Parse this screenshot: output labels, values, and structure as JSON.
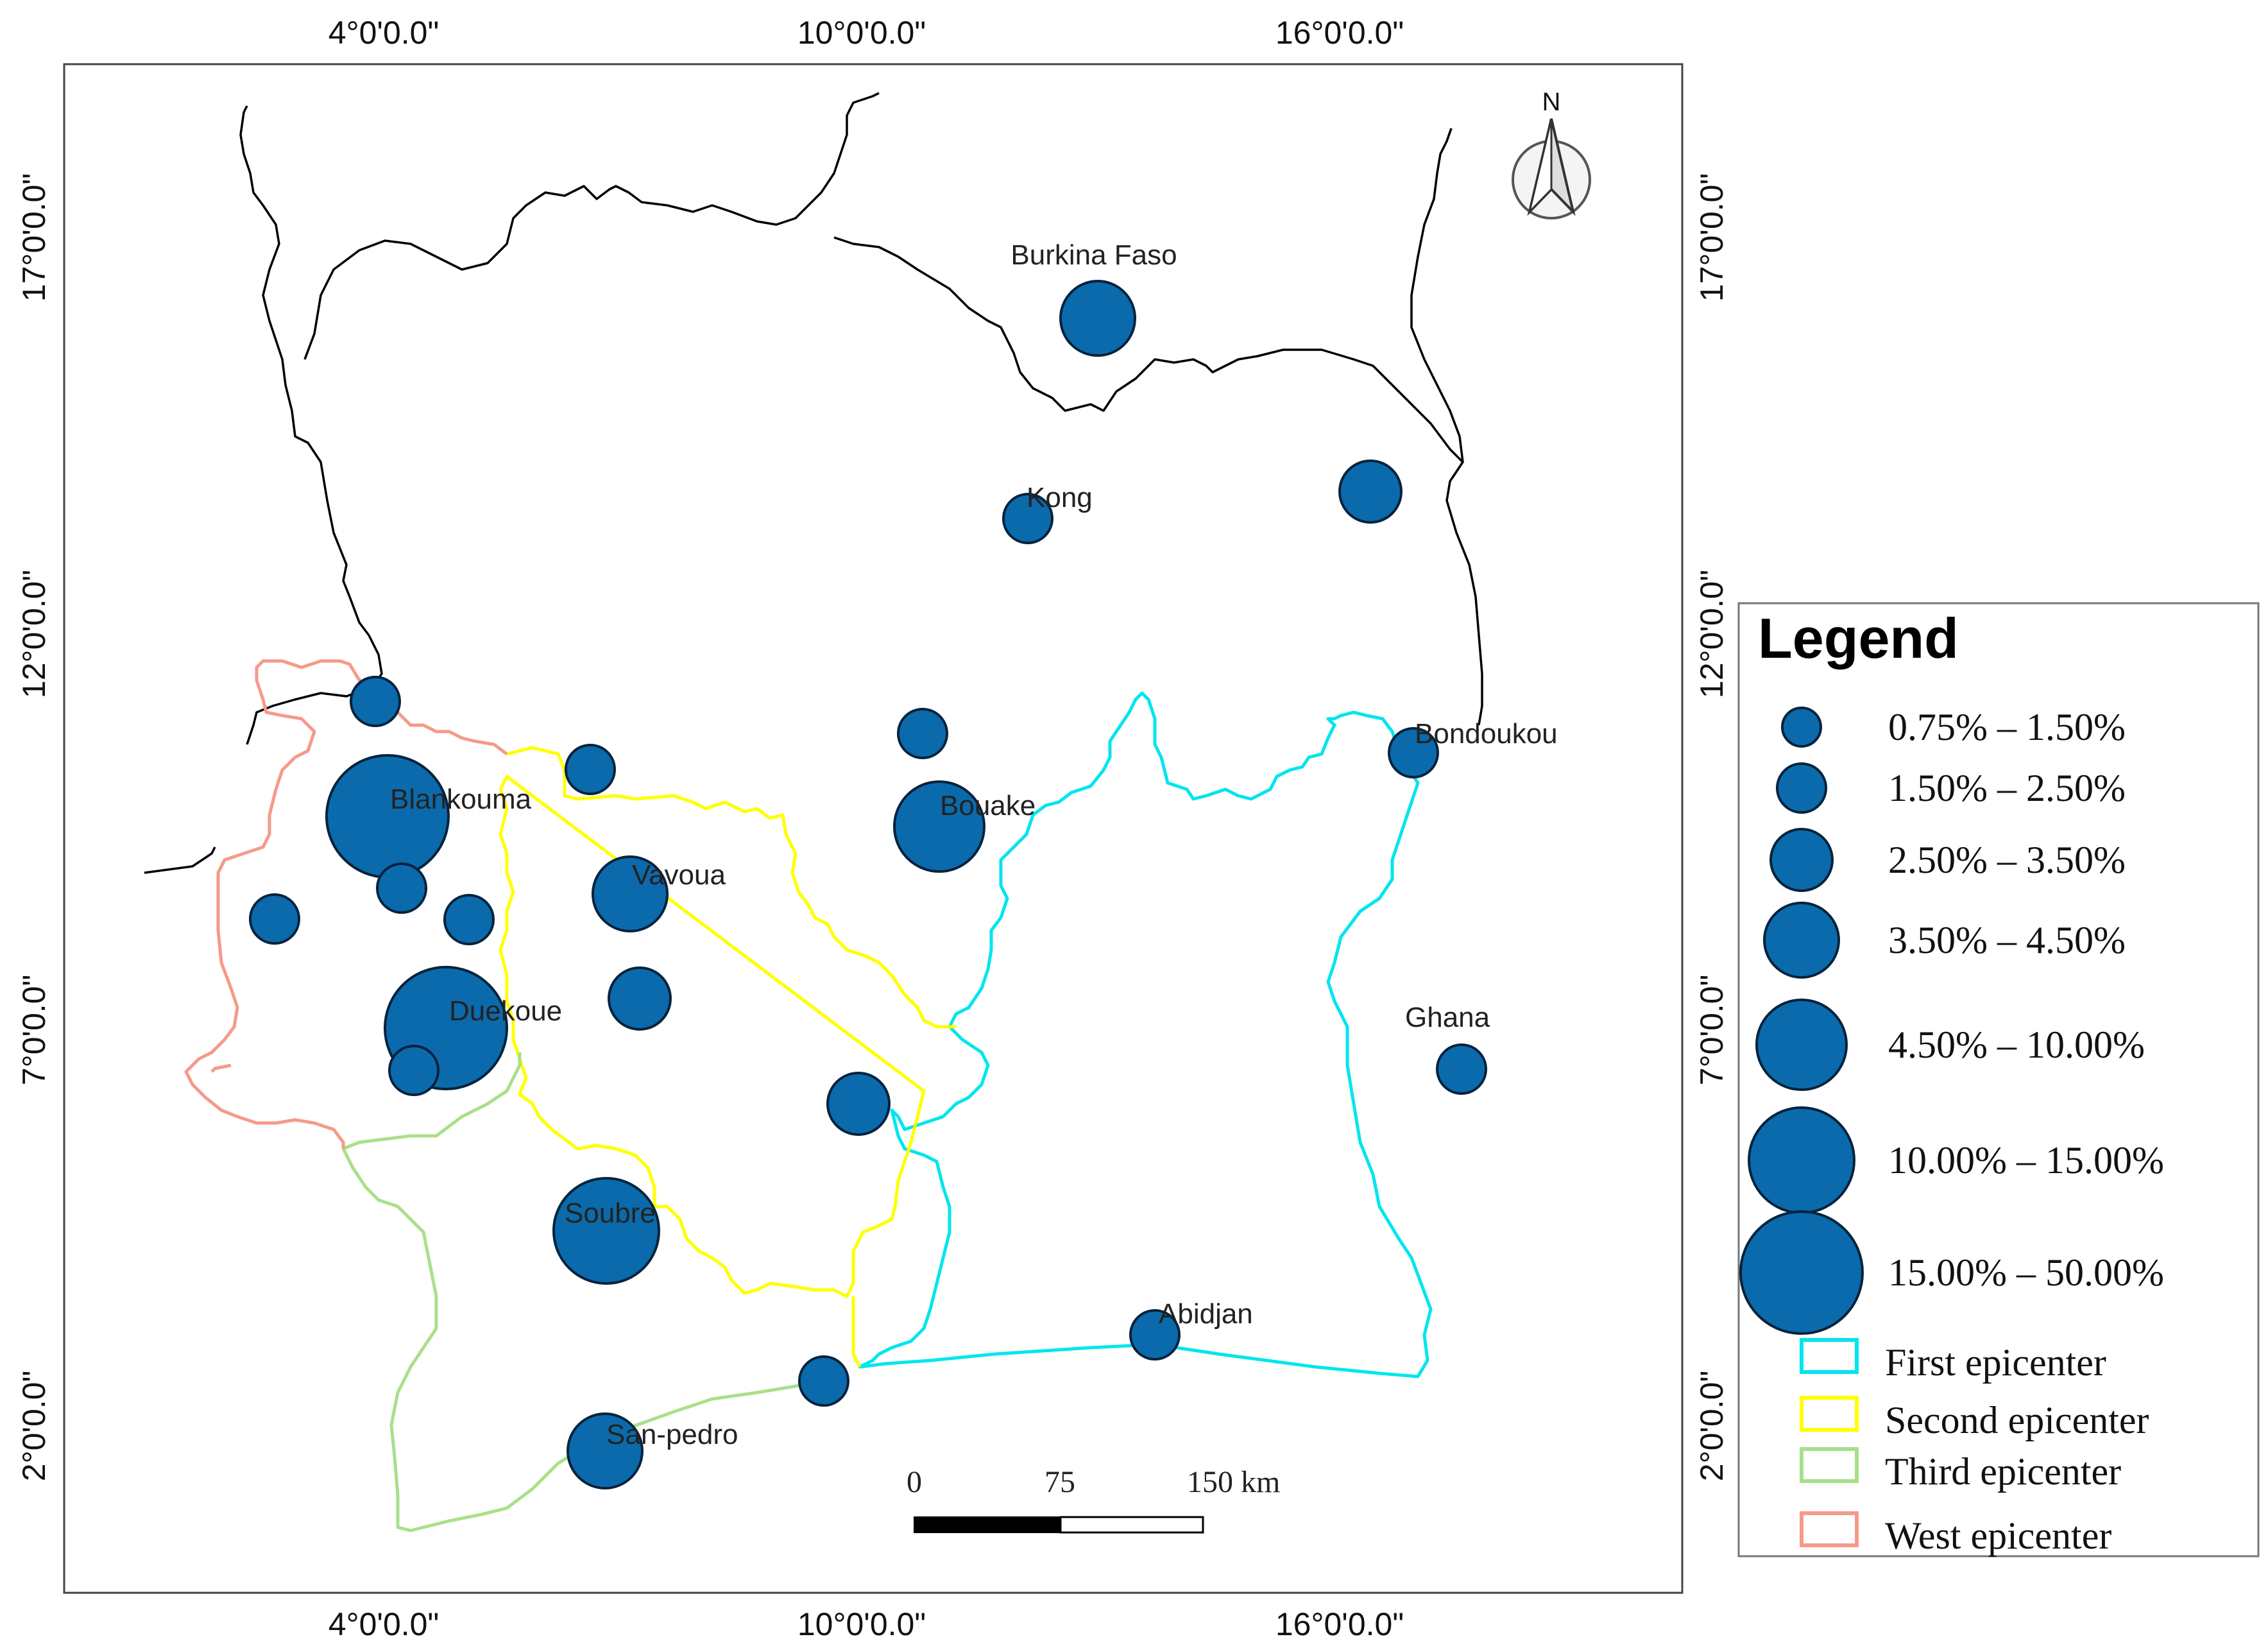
{
  "map": {
    "axes": {
      "top": [
        "4°0'0.0\"",
        "10°0'0.0\"",
        "16°0'0.0\""
      ],
      "bottom": [
        "4°0'0.0\"",
        "10°0'0.0\"",
        "16°0'0.0\""
      ],
      "left": [
        "17°0'0.0\"",
        "12°0'0.0\"",
        "7°0'0.0\"",
        "2°0'0.0\""
      ],
      "right": [
        "17°0'0.0\"",
        "12°0'0.0\"",
        "7°0'0.0\"",
        "2°0'0.0\""
      ]
    },
    "north_label": "N",
    "places": {
      "burkina_faso": "Burkina Faso",
      "kong": "Kong",
      "bondoukou": "Bondoukou",
      "blankouma": "Blankouma",
      "bouake": "Bouake",
      "vavoua": "Vavoua",
      "duekoue": "Duekoue",
      "ghana": "Ghana",
      "soubre": "Soubre",
      "abidjan": "Abidjan",
      "san_pedro": "San-pedro"
    },
    "scale_bar": {
      "labels": [
        "0",
        "75",
        "150 km"
      ]
    }
  },
  "legend": {
    "title": "Legend",
    "size_classes": [
      "0.75% – 1.50%",
      "1.50% – 2.50%",
      "2.50% – 3.50%",
      "3.50% – 4.50%",
      "4.50% – 10.00%",
      "10.00% – 15.00%",
      "15.00% – 50.00%"
    ],
    "zones": [
      {
        "label": "First epicenter",
        "color": "#00e5ee"
      },
      {
        "label": "Second epicenter",
        "color": "#ffff00"
      },
      {
        "label": "Third epicenter",
        "color": "#a8e08a"
      },
      {
        "label": "West epicenter",
        "color": "#f59a8a"
      }
    ]
  },
  "colors": {
    "circle_fill": "#0b6aab",
    "circle_stroke": "#06233d",
    "border": "#000000"
  }
}
